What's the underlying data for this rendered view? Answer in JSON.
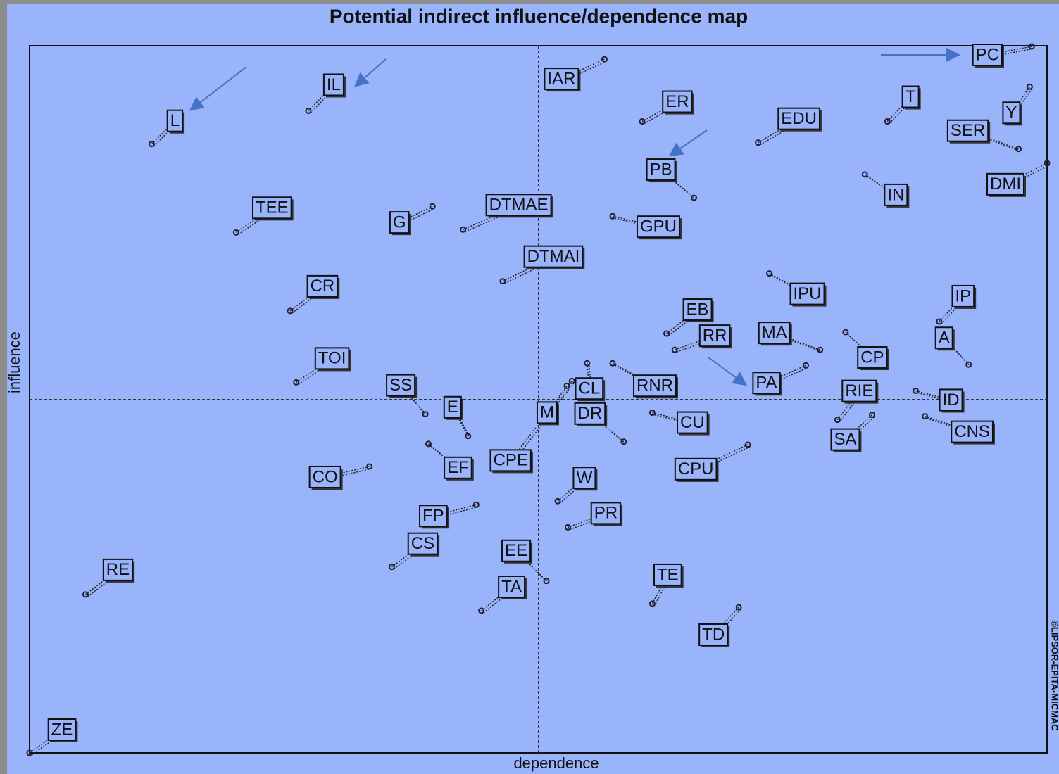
{
  "chart_data": {
    "type": "scatter",
    "title": "Potential indirect influence/dependence map",
    "x_label": "dependence",
    "y_label": "influence",
    "source": "©LIPSOR-EPITA-MICMAC",
    "xlim": [
      0,
      100
    ],
    "ylim": [
      0,
      100
    ],
    "x_divider": 50,
    "y_divider": 50,
    "color": "#202030",
    "labels": [
      "L",
      "IL",
      "IAR",
      "ER",
      "EDU",
      "T",
      "PC",
      "Y",
      "SER",
      "DMI",
      "PB",
      "IN",
      "TEE",
      "G",
      "DTMAE",
      "GPU",
      "DTMAI",
      "CR",
      "IPU",
      "EB",
      "RR",
      "MA",
      "CP",
      "IP",
      "A",
      "TOI",
      "SS",
      "E",
      "CL",
      "RNR",
      "PA",
      "RIE",
      "ID",
      "M",
      "DR",
      "CU",
      "SA",
      "CNS",
      "EF",
      "CPE",
      "CO",
      "CPU",
      "W",
      "FP",
      "PR",
      "CS",
      "EE",
      "TA",
      "TE",
      "RE",
      "TD",
      "ZE"
    ],
    "x": [
      12.0,
      27.4,
      56.5,
      60.2,
      71.6,
      84.3,
      98.5,
      98.3,
      97.2,
      100,
      65.3,
      82.1,
      20.3,
      39.6,
      42.6,
      57.3,
      46.5,
      25.6,
      72.7,
      62.6,
      63.4,
      77.7,
      80.2,
      89.4,
      92.3,
      26.2,
      38.9,
      43.1,
      54.8,
      57.3,
      76.3,
      79.4,
      87.1,
      52.8,
      58.4,
      61.2,
      82.8,
      88.0,
      39.2,
      53.3,
      33.4,
      70.6,
      51.9,
      43.9,
      52.9,
      35.6,
      50.8,
      44.4,
      61.2,
      5.5,
      69.7,
      0
    ],
    "values": [
      86.1,
      90.8,
      98.1,
      89.3,
      86.3,
      89.3,
      99.9,
      94.2,
      85.4,
      83.4,
      78.5,
      81.8,
      73.6,
      77.3,
      74.0,
      75.9,
      66.7,
      62.5,
      67.8,
      59.3,
      57.0,
      57.0,
      59.5,
      61.0,
      54.9,
      52.4,
      47.9,
      44.8,
      55.1,
      55.1,
      54.8,
      47.1,
      51.2,
      51.9,
      44.0,
      48.1,
      47.8,
      47.6,
      43.7,
      52.6,
      40.5,
      43.6,
      35.6,
      35.1,
      31.9,
      26.3,
      24.3,
      20.1,
      21.1,
      22.4,
      20.6,
      0
    ]
  }
}
